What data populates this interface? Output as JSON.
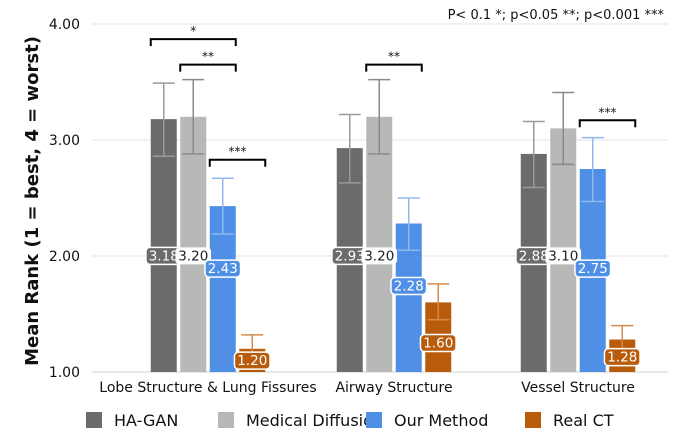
{
  "chart_data": {
    "type": "bar",
    "title": "",
    "xlabel": "",
    "ylabel": "Mean Rank (1 = best, 4 = worst)",
    "ylim": [
      1.0,
      4.0
    ],
    "yticks": [
      "1.00",
      "2.00",
      "3.00",
      "4.00"
    ],
    "yticks_values": [
      1.0,
      2.0,
      3.0,
      4.0
    ],
    "grid": true,
    "legend_position": "bottom",
    "significance_note": "P< 0.1 *; p<0.05 **; p<0.001 ***",
    "categories": [
      "Lobe Structure & Lung Fissures",
      "Airway Structure",
      "Vessel Structure"
    ],
    "series": [
      {
        "name": "HA-GAN",
        "color": "#6b6b6b",
        "values": [
          3.18,
          2.93,
          2.88
        ],
        "labels": [
          "3.18",
          "2.93",
          "2.88"
        ],
        "error_low": [
          2.86,
          2.63,
          2.59
        ],
        "error_high": [
          3.49,
          3.22,
          3.16
        ]
      },
      {
        "name": "Medical Diffusion",
        "color": "#b8b8b8",
        "values": [
          3.2,
          3.2,
          3.1
        ],
        "labels": [
          "3.20",
          "3.20",
          "3.10"
        ],
        "error_low": [
          2.88,
          2.88,
          2.79
        ],
        "error_high": [
          3.52,
          3.52,
          3.41
        ]
      },
      {
        "name": "Our Method",
        "color": "#4f8fe6",
        "values": [
          2.43,
          2.28,
          2.75
        ],
        "labels": [
          "2.43",
          "2.28",
          "2.75"
        ],
        "error_low": [
          2.19,
          2.05,
          2.47
        ],
        "error_high": [
          2.67,
          2.5,
          3.02
        ]
      },
      {
        "name": "Real CT",
        "color": "#b85c0c",
        "values": [
          1.2,
          1.6,
          1.28
        ],
        "labels": [
          "1.20",
          "1.60",
          "1.28"
        ],
        "error_low": [
          1.07,
          1.45,
          1.16
        ],
        "error_high": [
          1.32,
          1.76,
          1.4
        ]
      }
    ],
    "significance": [
      {
        "category": 0,
        "from": 0,
        "to": 2,
        "y": 3.87,
        "label": "*"
      },
      {
        "category": 0,
        "from": 1,
        "to": 2,
        "y": 3.65,
        "label": "**"
      },
      {
        "category": 0,
        "from": 2,
        "to": 3,
        "y": 2.83,
        "label": "***"
      },
      {
        "category": 1,
        "from": 1,
        "to": 2,
        "y": 3.65,
        "label": "**"
      },
      {
        "category": 2,
        "from": 2,
        "to": 3,
        "y": 3.17,
        "label": "***"
      }
    ]
  }
}
